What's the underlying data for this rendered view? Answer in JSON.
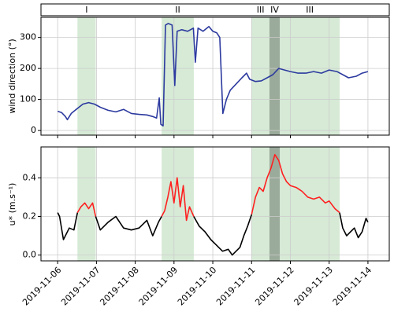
{
  "periods": [
    {
      "label": "I",
      "start": 0.51,
      "end": 0.98,
      "color": "#d6ead6"
    },
    {
      "label": "II",
      "start": 2.68,
      "end": 3.51,
      "color": "#d6ead6"
    },
    {
      "label": "III",
      "start": 5.0,
      "end": 5.46,
      "color": "#d6ead6"
    },
    {
      "label": "IV",
      "start": 5.46,
      "end": 5.73,
      "color": "#9bab9b"
    },
    {
      "label": "III",
      "start": 5.73,
      "end": 7.27,
      "color": "#d6ead6"
    }
  ],
  "chart_data": [
    {
      "type": "line",
      "ylabel": "wind direction (°)",
      "xlim": [
        -0.43,
        8.55
      ],
      "ylim": [
        -15,
        365
      ],
      "yticks": [
        0,
        100,
        200,
        300
      ],
      "grid": true,
      "x": [
        0,
        0.1,
        0.2,
        0.25,
        0.35,
        0.5,
        0.65,
        0.8,
        0.95,
        1.1,
        1.3,
        1.5,
        1.7,
        1.9,
        2.1,
        2.3,
        2.45,
        2.55,
        2.62,
        2.66,
        2.72,
        2.78,
        2.85,
        2.95,
        3.02,
        3.08,
        3.2,
        3.35,
        3.5,
        3.55,
        3.62,
        3.75,
        3.9,
        4.0,
        4.1,
        4.18,
        4.26,
        4.35,
        4.45,
        4.6,
        4.75,
        4.87,
        4.95,
        5.1,
        5.25,
        5.4,
        5.55,
        5.7,
        5.85,
        6.0,
        6.2,
        6.4,
        6.6,
        6.8,
        7.0,
        7.2,
        7.35,
        7.5,
        7.7,
        7.85,
        8.0
      ],
      "series": [
        {
          "color": "#2c3a9f",
          "values": [
            62,
            58,
            45,
            35,
            55,
            70,
            85,
            90,
            85,
            75,
            65,
            60,
            68,
            55,
            52,
            50,
            45,
            40,
            105,
            20,
            15,
            340,
            345,
            340,
            145,
            320,
            325,
            320,
            330,
            220,
            330,
            320,
            335,
            320,
            315,
            300,
            55,
            100,
            130,
            150,
            170,
            185,
            165,
            158,
            160,
            170,
            180,
            200,
            195,
            190,
            185,
            185,
            190,
            185,
            195,
            190,
            180,
            170,
            175,
            185,
            190
          ]
        }
      ]
    },
    {
      "type": "line",
      "ylabel": "u* (m.s⁻¹)",
      "xlim": [
        -0.43,
        8.55
      ],
      "ylim": [
        -0.03,
        0.56
      ],
      "yticks": [
        {
          "value": 0,
          "label": "0.0"
        },
        0.2,
        0.4
      ],
      "grid": true,
      "xticks": [
        {
          "value": 0,
          "label": "2019-11-06"
        },
        {
          "value": 1,
          "label": "2019-11-07"
        },
        {
          "value": 2,
          "label": "2019-11-08"
        },
        {
          "value": 3,
          "label": "2019-11-09"
        },
        {
          "value": 4,
          "label": "2019-11-10"
        },
        {
          "value": 5,
          "label": "2019-11-11"
        },
        {
          "value": 6,
          "label": "2019-11-12"
        },
        {
          "value": 7,
          "label": "2019-11-13"
        },
        {
          "value": 8,
          "label": "2019-11-14"
        }
      ],
      "x": [
        0,
        0.05,
        0.15,
        0.3,
        0.42,
        0.51,
        0.6,
        0.7,
        0.8,
        0.9,
        0.98,
        1.1,
        1.3,
        1.5,
        1.7,
        1.9,
        2.1,
        2.3,
        2.45,
        2.6,
        2.68,
        2.76,
        2.84,
        2.92,
        3.0,
        3.08,
        3.16,
        3.24,
        3.32,
        3.4,
        3.51,
        3.65,
        3.8,
        3.95,
        4.1,
        4.25,
        4.4,
        4.5,
        4.6,
        4.7,
        4.8,
        4.9,
        5.0,
        5.1,
        5.2,
        5.3,
        5.4,
        5.5,
        5.6,
        5.7,
        5.8,
        5.9,
        6.0,
        6.15,
        6.3,
        6.45,
        6.6,
        6.75,
        6.9,
        7.0,
        7.15,
        7.27,
        7.35,
        7.45,
        7.55,
        7.65,
        7.75,
        7.85,
        7.95,
        8.0
      ],
      "series": [
        {
          "color": "#000000",
          "values": [
            0.22,
            0.2,
            0.08,
            0.14,
            0.13,
            0.22,
            null,
            null,
            null,
            null,
            0.2,
            0.13,
            0.17,
            0.2,
            0.14,
            0.13,
            0.14,
            0.18,
            0.1,
            0.17,
            0.2,
            null,
            null,
            null,
            null,
            null,
            null,
            null,
            null,
            null,
            0.2,
            0.15,
            0.12,
            0.08,
            0.05,
            0.02,
            0.03,
            0,
            0.02,
            0.04,
            0.1,
            0.15,
            0.21,
            null,
            null,
            null,
            null,
            null,
            null,
            null,
            null,
            null,
            null,
            null,
            null,
            null,
            null,
            null,
            null,
            null,
            null,
            0.22,
            0.14,
            0.1,
            0.12,
            0.14,
            0.09,
            0.12,
            0.19,
            0.17
          ]
        },
        {
          "color": "#ff2020",
          "values": [
            null,
            null,
            null,
            null,
            null,
            0.22,
            0.25,
            0.27,
            0.24,
            0.27,
            0.2,
            null,
            null,
            null,
            null,
            null,
            null,
            null,
            null,
            null,
            0.2,
            0.23,
            0.3,
            0.38,
            0.27,
            0.4,
            0.25,
            0.36,
            0.18,
            0.25,
            0.2,
            null,
            null,
            null,
            null,
            null,
            null,
            null,
            null,
            null,
            null,
            null,
            0.21,
            0.3,
            0.35,
            0.33,
            0.4,
            0.45,
            0.52,
            0.49,
            0.42,
            0.38,
            0.36,
            0.35,
            0.33,
            0.3,
            0.29,
            0.3,
            0.27,
            0.28,
            0.24,
            0.22,
            null,
            null,
            null,
            null,
            null,
            null,
            null,
            null
          ]
        }
      ]
    }
  ]
}
